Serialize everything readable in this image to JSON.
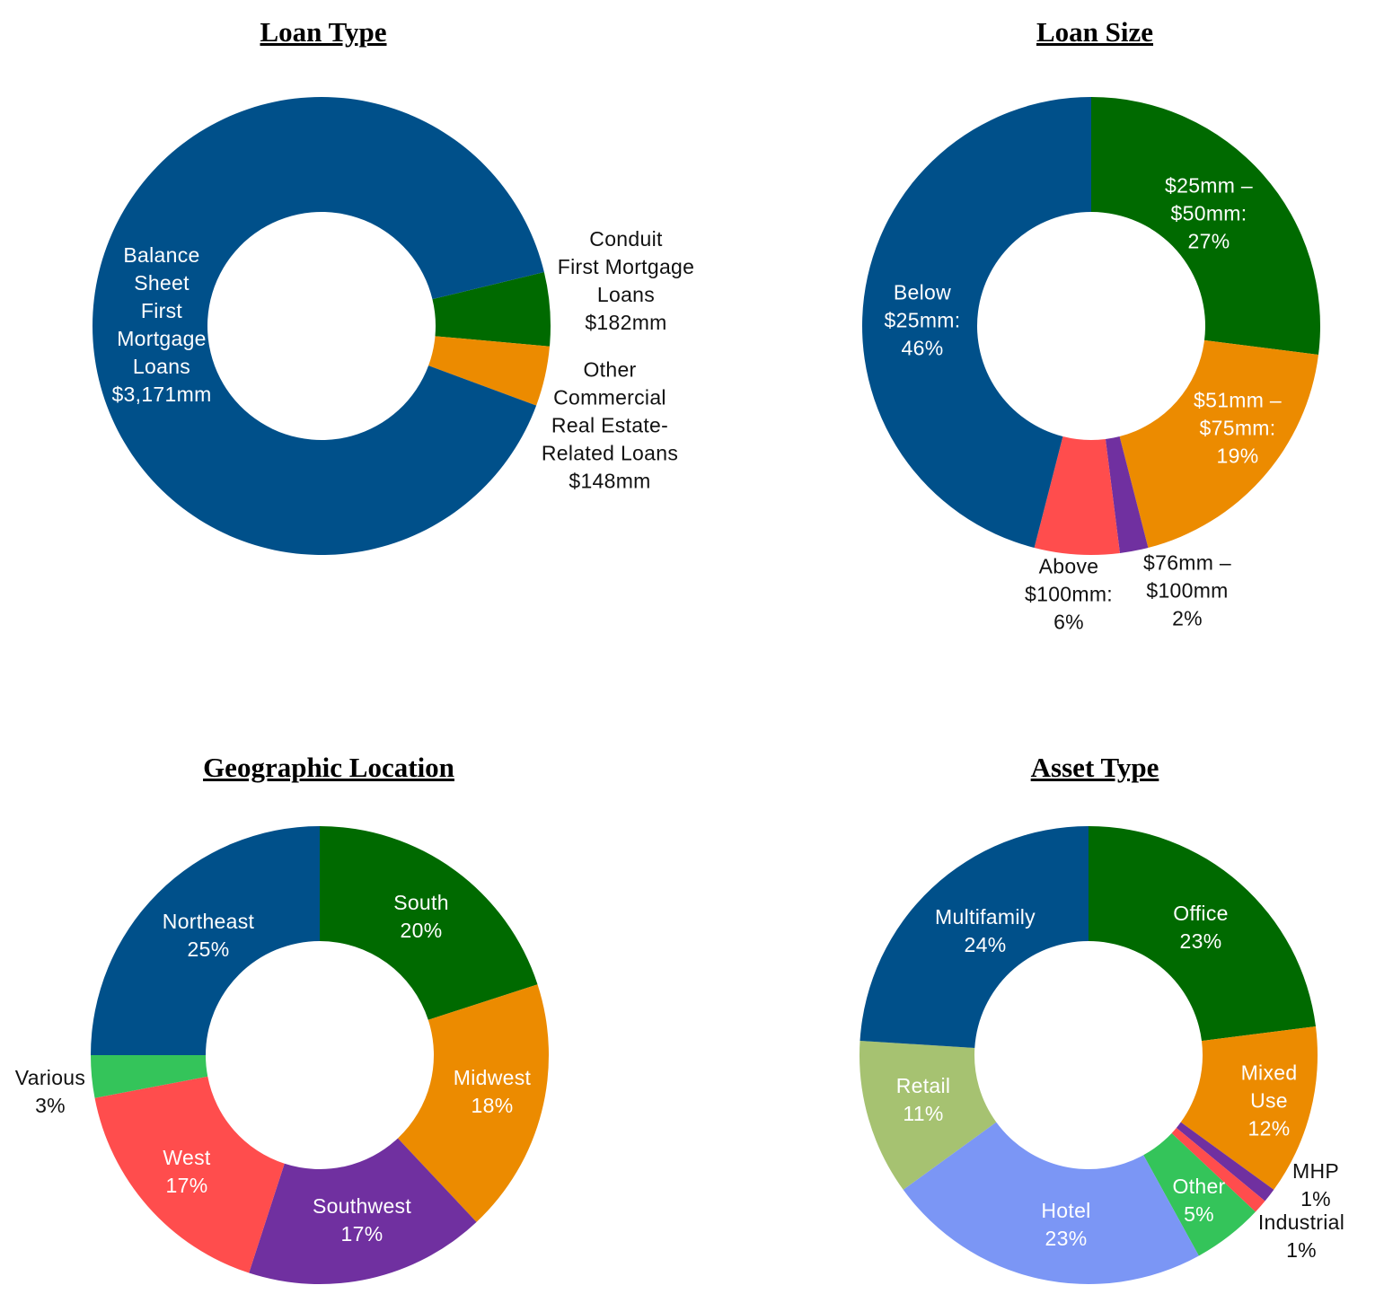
{
  "colors": {
    "blue": "#00508A",
    "green": "#006A00",
    "orange": "#EC8B00",
    "red": "#FF4D4D",
    "purple": "#7030A0",
    "light_green": "#34C45A",
    "olive": "#A6C271",
    "periwinkle": "#7B96F5"
  },
  "chart_data": [
    {
      "type": "pie",
      "donut": true,
      "title": "Loan Type",
      "unit": "$mm",
      "slices": [
        {
          "name": "Conduit First Mortgage Loans",
          "value": 182,
          "label": "Conduit\nFirst Mortgage\nLoans\n$182mm",
          "color": "#006A00"
        },
        {
          "name": "Other Commercial Real Estate-Related Loans",
          "value": 148,
          "label": "Other\nCommercial\nReal Estate-\nRelated Loans\n$148mm",
          "color": "#EC8B00"
        },
        {
          "name": "Balance Sheet First Mortgage Loans",
          "value": 3171,
          "label": "Balance\nSheet\nFirst\nMortgage\nLoans\n$3,171mm",
          "color": "#00508A"
        }
      ]
    },
    {
      "type": "pie",
      "donut": true,
      "title": "Loan Size",
      "unit": "%",
      "slices": [
        {
          "name": "$25mm – $50mm",
          "value": 27,
          "label": "$25mm –\n$50mm:\n27%",
          "color": "#006A00"
        },
        {
          "name": "$51mm – $75mm",
          "value": 19,
          "label": "$51mm –\n$75mm:\n19%",
          "color": "#EC8B00"
        },
        {
          "name": "$76mm – $100mm",
          "value": 2,
          "label": "$76mm –\n$100mm\n2%",
          "color": "#7030A0"
        },
        {
          "name": "Above $100mm",
          "value": 6,
          "label": "Above\n$100mm:\n6%",
          "color": "#FF4D4D"
        },
        {
          "name": "Below $25mm",
          "value": 46,
          "label": "Below\n$25mm:\n46%",
          "color": "#00508A"
        }
      ]
    },
    {
      "type": "pie",
      "donut": true,
      "title": "Geographic Location",
      "unit": "%",
      "slices": [
        {
          "name": "South",
          "value": 20,
          "label": "South\n20%",
          "color": "#006A00"
        },
        {
          "name": "Midwest",
          "value": 18,
          "label": "Midwest\n18%",
          "color": "#EC8B00"
        },
        {
          "name": "Southwest",
          "value": 17,
          "label": "Southwest\n17%",
          "color": "#7030A0"
        },
        {
          "name": "West",
          "value": 17,
          "label": "West\n17%",
          "color": "#FF4D4D"
        },
        {
          "name": "Various",
          "value": 3,
          "label": "Various\n3%",
          "color": "#34C45A"
        },
        {
          "name": "Northeast",
          "value": 25,
          "label": "Northeast\n25%",
          "color": "#00508A"
        }
      ]
    },
    {
      "type": "pie",
      "donut": true,
      "title": "Asset Type",
      "unit": "%",
      "slices": [
        {
          "name": "Office",
          "value": 23,
          "label": "Office\n23%",
          "color": "#006A00"
        },
        {
          "name": "Mixed Use",
          "value": 12,
          "label": "Mixed\nUse\n12%",
          "color": "#EC8B00"
        },
        {
          "name": "MHP",
          "value": 1,
          "label": "MHP\n1%",
          "color": "#7030A0"
        },
        {
          "name": "Industrial",
          "value": 1,
          "label": "Industrial\n1%",
          "color": "#FF4D4D"
        },
        {
          "name": "Other",
          "value": 5,
          "label": "Other\n5%",
          "color": "#34C45A"
        },
        {
          "name": "Hotel",
          "value": 23,
          "label": "Hotel\n23%",
          "color": "#7B96F5"
        },
        {
          "name": "Retail",
          "value": 11,
          "label": "Retail\n11%",
          "color": "#A6C271"
        },
        {
          "name": "Multifamily",
          "value": 24,
          "label": "Multifamily\n24%",
          "color": "#00508A"
        }
      ]
    }
  ]
}
